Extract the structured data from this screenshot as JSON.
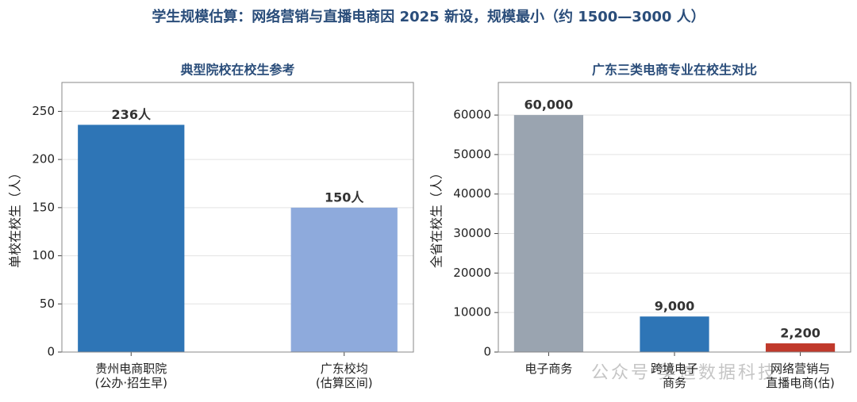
{
  "title": "学生规模估算：网络营销与直播电商因 2025 新设，规模最小（约 1500—3000 人）",
  "watermark": "公众号·美迪数据科技",
  "chart_data": [
    {
      "type": "bar",
      "title": "典型院校在校生参考",
      "ylabel": "单校在校生（人）",
      "categories": [
        "贵州电商职院\n(公办·招生早)",
        "广东校均\n(估算区间)"
      ],
      "values": [
        236,
        150
      ],
      "value_labels": [
        "236人",
        "150人"
      ],
      "colors": [
        "#2e75b6",
        "#8eaadc"
      ],
      "ylim": [
        0,
        280
      ],
      "yticks": [
        0,
        50,
        100,
        150,
        200,
        250
      ],
      "grid": true
    },
    {
      "type": "bar",
      "title": "广东三类电商专业在校生对比",
      "ylabel": "全省在校生（人）",
      "categories": [
        "电子商务",
        "跨境电子\n商务",
        "网络营销与\n直播电商(估)"
      ],
      "values": [
        60000,
        9000,
        2200
      ],
      "value_labels": [
        "60,000",
        "9,000",
        "2,200"
      ],
      "colors": [
        "#9aa4b0",
        "#2e75b6",
        "#c0392b"
      ],
      "ylim": [
        0,
        68250
      ],
      "yticks": [
        0,
        10000,
        20000,
        30000,
        40000,
        50000,
        60000
      ],
      "grid": true
    }
  ]
}
